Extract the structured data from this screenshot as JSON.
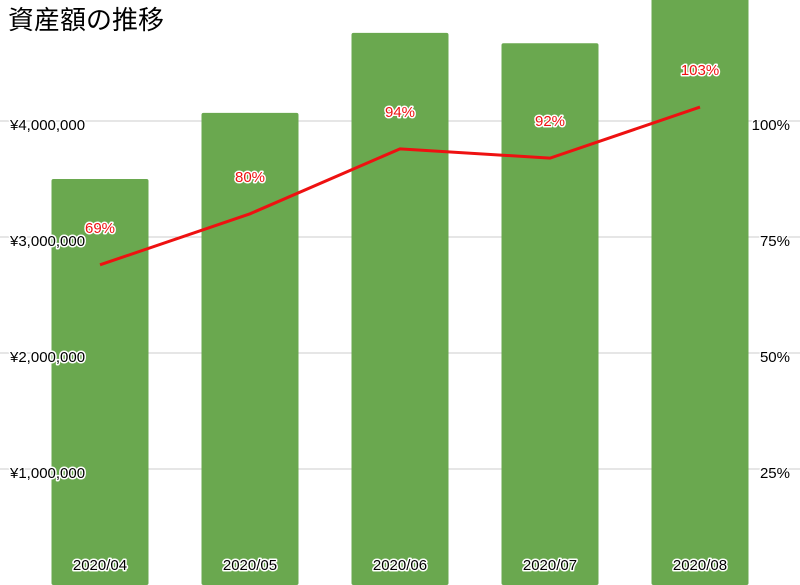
{
  "chart_data": {
    "type": "bar-line",
    "title": "資産額の推移",
    "categories": [
      "2020/04",
      "2020/05",
      "2020/06",
      "2020/07",
      "2020/08"
    ],
    "series": [
      {
        "type": "bar",
        "color": "#6aa84f",
        "values": [
          3500000,
          4070000,
          4760000,
          4670000,
          5200000
        ]
      },
      {
        "type": "line",
        "axis": "y2",
        "color": "#ee1111",
        "values": [
          69,
          80,
          94,
          92,
          103
        ],
        "value_labels": [
          "69%",
          "80%",
          "94%",
          "92%",
          "103%"
        ]
      }
    ],
    "ylim": [
      0,
      5000000
    ],
    "yticks": [
      {
        "value": 1000000,
        "label": "¥1,000,000"
      },
      {
        "value": 2000000,
        "label": "¥2,000,000"
      },
      {
        "value": 3000000,
        "label": "¥3,000,000"
      },
      {
        "value": 4000000,
        "label": "¥4,000,000"
      }
    ],
    "y2lim": [
      0,
      125
    ],
    "y2ticks": [
      {
        "value": 25,
        "label": "25%"
      },
      {
        "value": 50,
        "label": "50%"
      },
      {
        "value": 75,
        "label": "75%"
      },
      {
        "value": 100,
        "label": "100%"
      }
    ],
    "grid": true
  }
}
